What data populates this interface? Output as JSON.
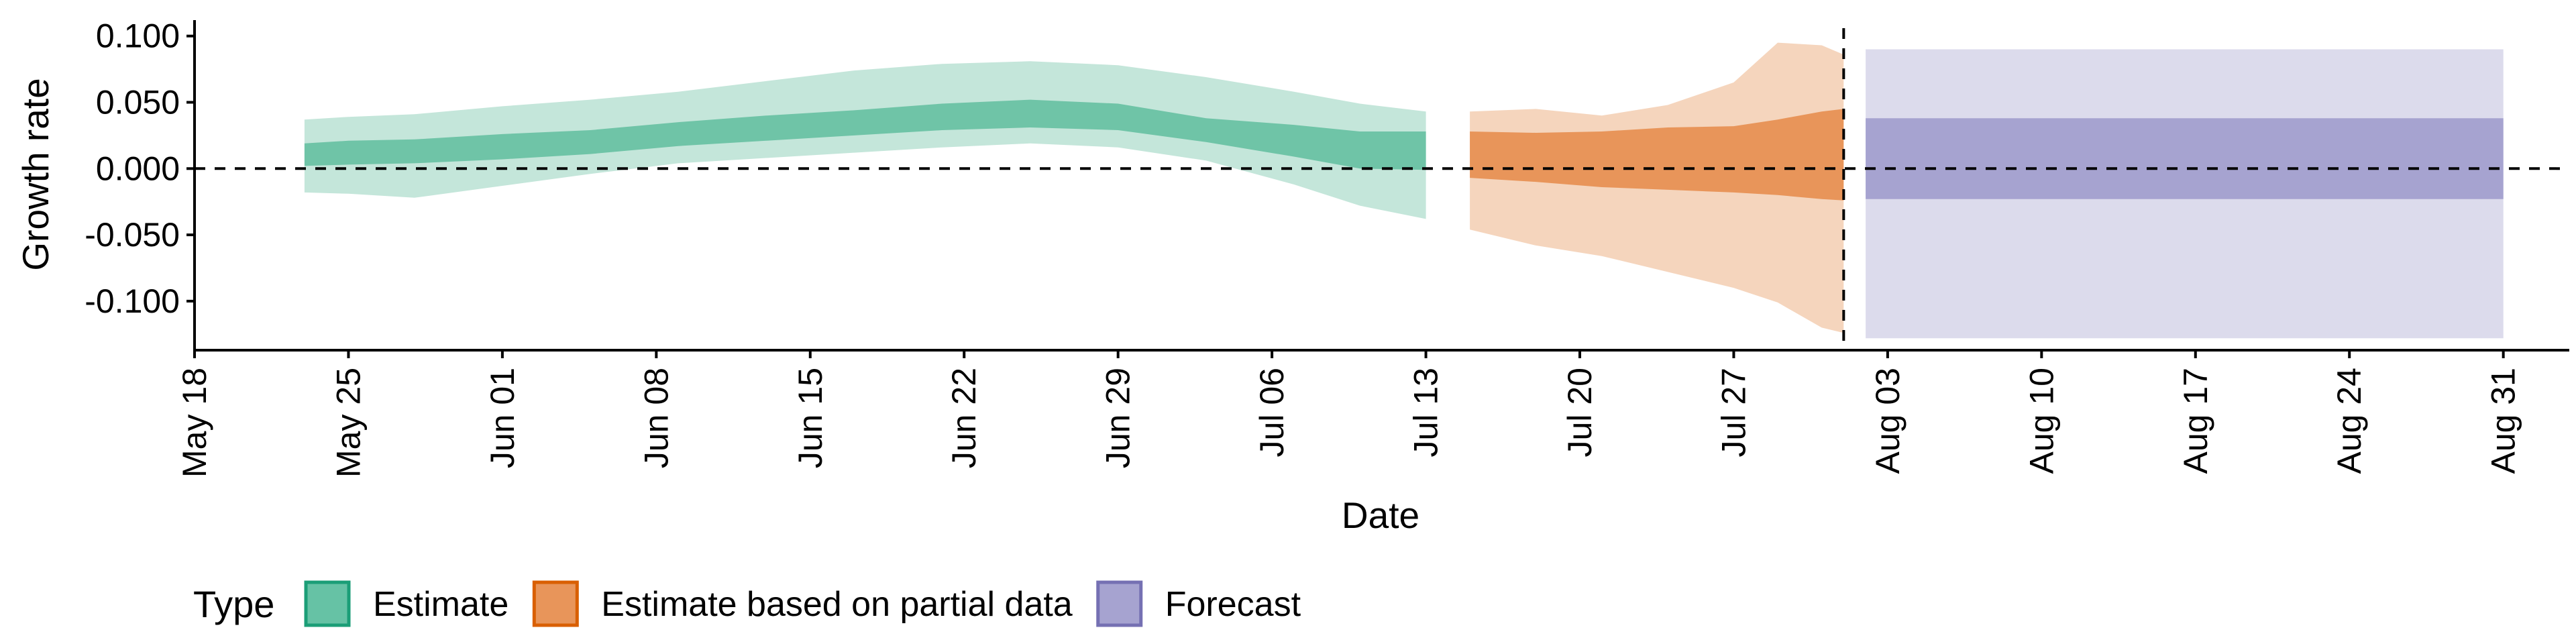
{
  "chart_data": {
    "type": "area",
    "xlabel": "Date",
    "ylabel": "Growth rate",
    "xlim": [
      "2020-05-18",
      "2020-09-03"
    ],
    "ylim": [
      -0.137,
      0.112
    ],
    "y_ticks": [
      0.1,
      0.05,
      0.0,
      -0.05,
      -0.1
    ],
    "y_tick_labels": [
      "0.100",
      "0.050",
      "0.000",
      "-0.050",
      "-0.100"
    ],
    "x_ticks": [
      "2020-05-18",
      "2020-05-25",
      "2020-06-01",
      "2020-06-08",
      "2020-06-15",
      "2020-06-22",
      "2020-06-29",
      "2020-07-06",
      "2020-07-13",
      "2020-07-20",
      "2020-07-27",
      "2020-08-03",
      "2020-08-10",
      "2020-08-17",
      "2020-08-24",
      "2020-08-31"
    ],
    "x_tick_labels": [
      "May 18",
      "May 25",
      "Jun 01",
      "Jun 08",
      "Jun 15",
      "Jun 22",
      "Jun 29",
      "Jul 06",
      "Jul 13",
      "Jul 20",
      "Jul 27",
      "Aug 03",
      "Aug 10",
      "Aug 17",
      "Aug 24",
      "Aug 31"
    ],
    "reference_lines": {
      "hline_y": 0.0,
      "vline_x": "2020-08-01"
    },
    "legend": {
      "title": "Type",
      "position": "bottom",
      "items": [
        {
          "label": "Estimate",
          "color": "#66C2A5"
        },
        {
          "label": "Estimate based on partial data",
          "color": "#E8955A"
        },
        {
          "label": "Forecast",
          "color": "#A6A3D0"
        }
      ]
    },
    "series": [
      {
        "name": "Estimate",
        "colors": {
          "outer": "#C4E6DA",
          "inner": "#6FC4A7"
        },
        "points": [
          {
            "x": "2020-05-23",
            "lo90": -0.018,
            "lo50": 0.002,
            "hi50": 0.019,
            "hi90": 0.037
          },
          {
            "x": "2020-05-25",
            "lo90": -0.019,
            "lo50": 0.003,
            "hi50": 0.021,
            "hi90": 0.039
          },
          {
            "x": "2020-05-28",
            "lo90": -0.022,
            "lo50": 0.004,
            "hi50": 0.022,
            "hi90": 0.041
          },
          {
            "x": "2020-06-01",
            "lo90": -0.013,
            "lo50": 0.007,
            "hi50": 0.026,
            "hi90": 0.047
          },
          {
            "x": "2020-06-05",
            "lo90": -0.004,
            "lo50": 0.011,
            "hi50": 0.029,
            "hi90": 0.052
          },
          {
            "x": "2020-06-09",
            "lo90": 0.004,
            "lo50": 0.017,
            "hi50": 0.035,
            "hi90": 0.058
          },
          {
            "x": "2020-06-13",
            "lo90": 0.008,
            "lo50": 0.021,
            "hi50": 0.04,
            "hi90": 0.066
          },
          {
            "x": "2020-06-17",
            "lo90": 0.012,
            "lo50": 0.025,
            "hi50": 0.044,
            "hi90": 0.074
          },
          {
            "x": "2020-06-21",
            "lo90": 0.016,
            "lo50": 0.029,
            "hi50": 0.049,
            "hi90": 0.079
          },
          {
            "x": "2020-06-25",
            "lo90": 0.019,
            "lo50": 0.031,
            "hi50": 0.052,
            "hi90": 0.081
          },
          {
            "x": "2020-06-29",
            "lo90": 0.016,
            "lo50": 0.029,
            "hi50": 0.049,
            "hi90": 0.078
          },
          {
            "x": "2020-07-03",
            "lo90": 0.006,
            "lo50": 0.02,
            "hi50": 0.038,
            "hi90": 0.069
          },
          {
            "x": "2020-07-07",
            "lo90": -0.012,
            "lo50": 0.009,
            "hi50": 0.033,
            "hi90": 0.058
          },
          {
            "x": "2020-07-10",
            "lo90": -0.028,
            "lo50": 0.0,
            "hi50": 0.028,
            "hi90": 0.049
          },
          {
            "x": "2020-07-13",
            "lo90": -0.038,
            "lo50": -0.001,
            "hi50": 0.028,
            "hi90": 0.043
          }
        ]
      },
      {
        "name": "Estimate based on partial data",
        "colors": {
          "outer": "#F5D5BD",
          "inner": "#E8955A"
        },
        "points": [
          {
            "x": "2020-07-15",
            "lo90": -0.046,
            "lo50": -0.007,
            "hi50": 0.028,
            "hi90": 0.043
          },
          {
            "x": "2020-07-18",
            "lo90": -0.058,
            "lo50": -0.01,
            "hi50": 0.027,
            "hi90": 0.045
          },
          {
            "x": "2020-07-21",
            "lo90": -0.066,
            "lo50": -0.014,
            "hi50": 0.028,
            "hi90": 0.04
          },
          {
            "x": "2020-07-24",
            "lo90": -0.078,
            "lo50": -0.016,
            "hi50": 0.031,
            "hi90": 0.048
          },
          {
            "x": "2020-07-27",
            "lo90": -0.09,
            "lo50": -0.018,
            "hi50": 0.032,
            "hi90": 0.065
          },
          {
            "x": "2020-07-29",
            "lo90": -0.101,
            "lo50": -0.02,
            "hi50": 0.037,
            "hi90": 0.095
          },
          {
            "x": "2020-07-31",
            "lo90": -0.12,
            "lo50": -0.023,
            "hi50": 0.043,
            "hi90": 0.093
          },
          {
            "x": "2020-08-01",
            "lo90": -0.124,
            "lo50": -0.024,
            "hi50": 0.045,
            "hi90": 0.086
          }
        ]
      },
      {
        "name": "Forecast",
        "colors": {
          "outer": "#DCDBEC",
          "inner": "#A6A3D0"
        },
        "points": [
          {
            "x": "2020-08-02",
            "lo90": -0.128,
            "lo50": -0.023,
            "hi50": 0.038,
            "hi90": 0.09
          },
          {
            "x": "2020-08-31",
            "lo90": -0.128,
            "lo50": -0.023,
            "hi50": 0.038,
            "hi90": 0.09
          }
        ]
      }
    ]
  }
}
